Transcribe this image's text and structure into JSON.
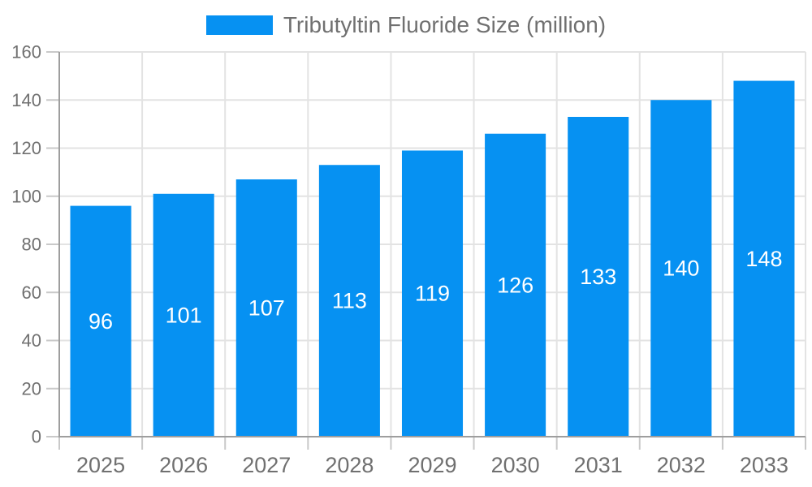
{
  "legend": {
    "label": "Tributyltin Fluoride Size (million)"
  },
  "colors": {
    "bar": "#0691f2",
    "bar_label": "#ffffff",
    "axis": "#9e9e9e",
    "grid": "#e3e3e3",
    "tick": "#c9c9c9",
    "text": "#707070",
    "background": "#ffffff"
  },
  "chart_data": {
    "type": "bar",
    "title": "Tributyltin Fluoride Size (million)",
    "series_name": "Tributyltin Fluoride Size (million)",
    "categories": [
      "2025",
      "2026",
      "2027",
      "2028",
      "2029",
      "2030",
      "2031",
      "2032",
      "2033"
    ],
    "values": [
      96,
      101,
      107,
      113,
      119,
      126,
      133,
      140,
      148
    ],
    "xlabel": "",
    "ylabel": "",
    "ylim": [
      0,
      160
    ],
    "ytick_step": 20,
    "ytick_labels": [
      "0",
      "20",
      "40",
      "60",
      "80",
      "100",
      "120",
      "140",
      "160"
    ],
    "grid": true,
    "legend_position": "top-center",
    "bar_label_position": "inside-center"
  }
}
